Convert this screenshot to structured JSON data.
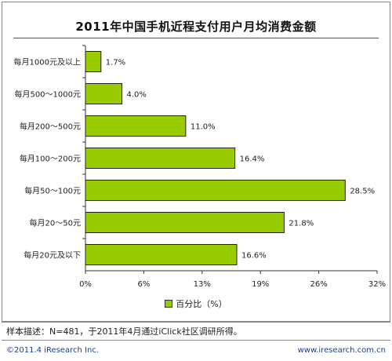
{
  "chart_data": {
    "type": "bar",
    "orientation": "horizontal",
    "title": "2011年中国手机近程支付用户月均消费金额",
    "categories": [
      "每月1000元及以上",
      "每月500～1000元",
      "每月200～500元",
      "每月100～200元",
      "每月50～100元",
      "每月20～50元",
      "每月20元及以下"
    ],
    "values": [
      1.7,
      4.0,
      11.0,
      16.4,
      28.5,
      21.8,
      16.6
    ],
    "value_labels": [
      "1.7%",
      "4.0%",
      "11.0%",
      "16.4%",
      "28.5%",
      "21.8%",
      "16.6%"
    ],
    "series": [
      {
        "name": "百分比（%）",
        "values": [
          1.7,
          4.0,
          11.0,
          16.4,
          28.5,
          21.8,
          16.6
        ]
      }
    ],
    "x_ticks": [
      "0%",
      "6%",
      "13%",
      "19%",
      "26%",
      "32%"
    ],
    "xlim": [
      0,
      32
    ],
    "grid": false,
    "legend_position": "bottom",
    "bar_color": "#99cc00"
  },
  "note": "样本描述：N=481，于2011年4月通过iClick社区调研所得。",
  "footer": {
    "copyright": "©2011.4 iResearch Inc.",
    "website": "www.iresearch.com.cn"
  }
}
